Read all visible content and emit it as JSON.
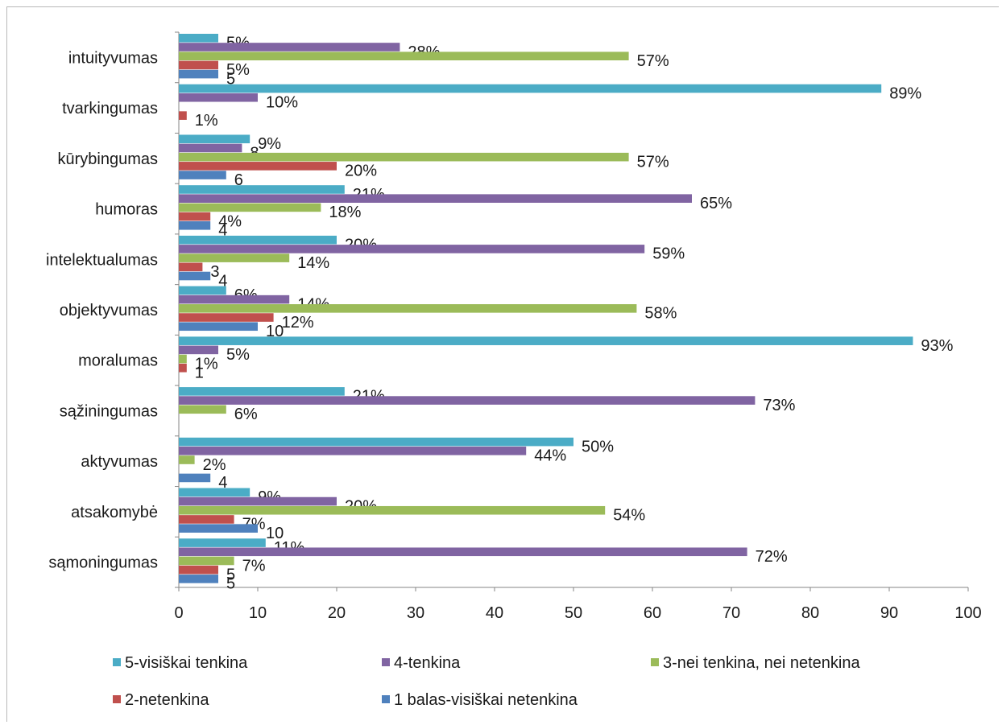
{
  "chart_data": {
    "type": "bar",
    "orientation": "horizontal",
    "title": "",
    "xlabel": "",
    "ylabel": "",
    "xlim": [
      0,
      100
    ],
    "x_ticks": [
      0,
      10,
      20,
      30,
      40,
      50,
      60,
      70,
      80,
      90,
      100
    ],
    "grid": false,
    "legend_position": "bottom",
    "categories": [
      "intuityvumas",
      "tvarkingumas",
      "kūrybingumas",
      "humoras",
      "intelektualumas",
      "objektyvumas",
      "moralumas",
      "sąžiningumas",
      "aktyvumas",
      "atsakomybė",
      "sąmoningumas"
    ],
    "series": [
      {
        "name": "5-visiškai tenkina",
        "color": "#4bacc6",
        "values": [
          5,
          89,
          9,
          21,
          20,
          6,
          93,
          21,
          50,
          9,
          11
        ],
        "labels": [
          "5%",
          "89%",
          "9%",
          "21%",
          "20%",
          "6%",
          "93%",
          "21%",
          "50%",
          "9%",
          "11%"
        ]
      },
      {
        "name": "4-tenkina",
        "color": "#8064a2",
        "values": [
          28,
          10,
          8,
          65,
          59,
          14,
          5,
          73,
          44,
          20,
          72
        ],
        "labels": [
          "28%",
          "10%",
          "8",
          "65%",
          "59%",
          "14%",
          "5%",
          "73%",
          "44%",
          "20%",
          "72%"
        ]
      },
      {
        "name": "3-nei tenkina, nei netenkina",
        "color": "#9bbb59",
        "values": [
          57,
          null,
          57,
          18,
          14,
          58,
          1,
          6,
          2,
          54,
          7
        ],
        "labels": [
          "57%",
          "",
          "57%",
          "18%",
          "14%",
          "58%",
          "1%",
          "6%",
          "2%",
          "54%",
          "7%"
        ]
      },
      {
        "name": "2-netenkina",
        "color": "#c0504d",
        "values": [
          5,
          1,
          20,
          4,
          3,
          12,
          1,
          null,
          null,
          7,
          5
        ],
        "labels": [
          "5%",
          "1%",
          "20%",
          "4%",
          "3",
          "12%",
          "1",
          "",
          "",
          "7%",
          "5"
        ]
      },
      {
        "name": "1 balas-visiškai netenkina",
        "color": "#4f81bd",
        "values": [
          5,
          null,
          6,
          4,
          4,
          10,
          null,
          null,
          4,
          10,
          5
        ],
        "labels": [
          "5",
          "",
          "6",
          "4",
          "4",
          "10",
          "",
          "",
          "4",
          "10",
          "5"
        ]
      }
    ]
  }
}
